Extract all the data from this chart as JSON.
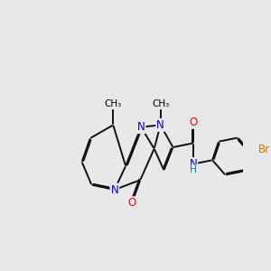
{
  "background_color": "#e8e8e8",
  "atom_colors": {
    "N_blue": "#0000cc",
    "O_red": "#ff0000",
    "Br_orange": "#cc7700",
    "NH_teal": "#008888",
    "C_black": "#000000"
  },
  "bond_lw": 1.4,
  "font_size": 8.5,
  "figsize": [
    3.0,
    3.0
  ],
  "dpi": 100,
  "xlim": [
    0,
    10
  ],
  "ylim": [
    0,
    10
  ]
}
